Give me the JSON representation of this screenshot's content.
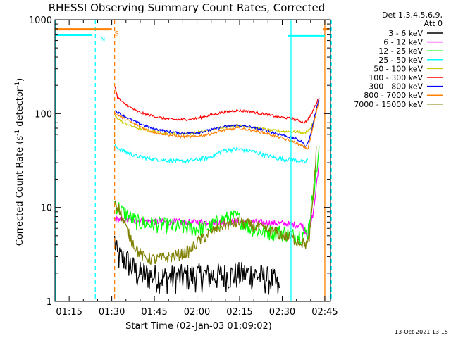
{
  "chart_data": {
    "type": "line",
    "title": "RHESSI Observing Summary Count Rates, Corrected",
    "xlabel": "Start Time (02-Jan-03 01:09:02)",
    "ylabel_main": "Corrected Count Rate (s",
    "ylabel_sup1": "-1",
    "ylabel_mid": " detector",
    "ylabel_sup2": "-1",
    "ylabel_end": ")",
    "y_scale": "log",
    "ylim": [
      1,
      1000
    ],
    "xlim_minutes": [
      1.0,
      98.0
    ],
    "x_ticks": [
      {
        "m": 6,
        "label": "01:15"
      },
      {
        "m": 21,
        "label": "01:30"
      },
      {
        "m": 36,
        "label": "01:45"
      },
      {
        "m": 51,
        "label": "02:00"
      },
      {
        "m": 66,
        "label": "02:15"
      },
      {
        "m": 81,
        "label": "02:30"
      },
      {
        "m": 96,
        "label": "02:45"
      }
    ],
    "y_ticks": [
      {
        "v": 1,
        "label": "1"
      },
      {
        "v": 10,
        "label": "10"
      },
      {
        "v": 100,
        "label": "100"
      },
      {
        "v": 1000,
        "label": "1000"
      }
    ],
    "legend": {
      "header1": "Det 1,3,4,5,6,9,",
      "header2": "Att 0",
      "position": "right",
      "entries": [
        {
          "label": "3 - 6 keV",
          "color": "#000000"
        },
        {
          "label": "6 - 12 keV",
          "color": "#ff00ff"
        },
        {
          "label": "12 - 25 keV",
          "color": "#00ff00"
        },
        {
          "label": "25 - 50 keV",
          "color": "#00ffff"
        },
        {
          "label": "50 - 100 keV",
          "color": "#cccc00"
        },
        {
          "label": "100 - 300 keV",
          "color": "#ff0000"
        },
        {
          "label": "300 - 800 keV",
          "color": "#0000ff"
        },
        {
          "label": "800 - 7000 keV",
          "color": "#ff8000"
        },
        {
          "label": "7000 - 15000 keV",
          "color": "#808000"
        }
      ]
    },
    "series": [
      {
        "name": "3 - 6 keV",
        "color": "#000000",
        "noise": 0.35,
        "points": [
          [
            22,
            4.5
          ],
          [
            23,
            3
          ],
          [
            26,
            2.8
          ],
          [
            30,
            2
          ],
          [
            40,
            1.8
          ],
          [
            50,
            1.9
          ],
          [
            60,
            1.9
          ],
          [
            70,
            2
          ],
          [
            75,
            1.8
          ],
          [
            78,
            1.7
          ],
          [
            80,
            1.3
          ]
        ]
      },
      {
        "name": "6 - 12 keV",
        "color": "#ff00ff",
        "noise": 0.08,
        "points": [
          [
            22,
            7.5
          ],
          [
            30,
            7.2
          ],
          [
            40,
            7
          ],
          [
            50,
            7
          ],
          [
            60,
            7
          ],
          [
            70,
            7
          ],
          [
            80,
            6.8
          ],
          [
            88,
            6.5
          ],
          [
            90,
            5
          ],
          [
            92,
            9
          ],
          [
            94,
            30
          ]
        ]
      },
      {
        "name": "12 - 25 keV",
        "color": "#00ff00",
        "noise": 0.2,
        "points": [
          [
            22,
            11
          ],
          [
            25,
            9
          ],
          [
            30,
            7
          ],
          [
            40,
            6.5
          ],
          [
            50,
            6
          ],
          [
            55,
            6.2
          ],
          [
            60,
            7.5
          ],
          [
            65,
            8
          ],
          [
            70,
            6
          ],
          [
            75,
            5.5
          ],
          [
            80,
            5.5
          ],
          [
            86,
            5
          ],
          [
            90,
            5.5
          ],
          [
            94,
            40
          ]
        ]
      },
      {
        "name": "25 - 50 keV",
        "color": "#00ffff",
        "noise": 0.05,
        "points": [
          [
            22,
            45
          ],
          [
            25,
            40
          ],
          [
            30,
            35
          ],
          [
            35,
            33
          ],
          [
            40,
            32
          ],
          [
            45,
            31
          ],
          [
            50,
            32
          ],
          [
            55,
            34
          ],
          [
            60,
            40
          ],
          [
            65,
            42
          ],
          [
            70,
            40
          ],
          [
            75,
            36
          ],
          [
            80,
            33
          ],
          [
            86,
            32
          ],
          [
            89,
            30
          ],
          [
            90,
            33
          ]
        ]
      },
      {
        "name": "50 - 100 keV",
        "color": "#cccc00",
        "noise": 0.03,
        "points": [
          [
            22,
            95
          ],
          [
            25,
            80
          ],
          [
            30,
            70
          ],
          [
            35,
            65
          ],
          [
            40,
            62
          ],
          [
            45,
            61
          ],
          [
            50,
            62
          ],
          [
            55,
            66
          ],
          [
            60,
            72
          ],
          [
            65,
            75
          ],
          [
            70,
            72
          ],
          [
            75,
            68
          ],
          [
            80,
            65
          ],
          [
            86,
            64
          ],
          [
            89,
            62
          ],
          [
            91,
            70
          ],
          [
            93,
            95
          ]
        ]
      },
      {
        "name": "100 - 300 keV",
        "color": "#ff0000",
        "noise": 0.03,
        "points": [
          [
            22,
            200
          ],
          [
            23,
            150
          ],
          [
            25,
            130
          ],
          [
            30,
            105
          ],
          [
            35,
            95
          ],
          [
            40,
            88
          ],
          [
            45,
            86
          ],
          [
            50,
            88
          ],
          [
            55,
            95
          ],
          [
            60,
            103
          ],
          [
            65,
            108
          ],
          [
            70,
            105
          ],
          [
            75,
            98
          ],
          [
            80,
            92
          ],
          [
            85,
            88
          ],
          [
            89,
            80
          ],
          [
            91,
            95
          ],
          [
            94,
            150
          ]
        ]
      },
      {
        "name": "300 - 800 keV",
        "color": "#0000ff",
        "noise": 0.03,
        "points": [
          [
            22,
            108
          ],
          [
            25,
            95
          ],
          [
            30,
            80
          ],
          [
            35,
            70
          ],
          [
            40,
            65
          ],
          [
            45,
            62
          ],
          [
            50,
            62
          ],
          [
            55,
            66
          ],
          [
            60,
            72
          ],
          [
            65,
            75
          ],
          [
            70,
            72
          ],
          [
            75,
            66
          ],
          [
            80,
            60
          ],
          [
            85,
            55
          ],
          [
            88,
            50
          ],
          [
            89,
            45
          ],
          [
            90,
            48
          ],
          [
            91,
            60
          ],
          [
            94,
            150
          ]
        ]
      },
      {
        "name": "800 - 7000 keV",
        "color": "#ff8000",
        "noise": 0.03,
        "points": [
          [
            22,
            100
          ],
          [
            25,
            90
          ],
          [
            30,
            75
          ],
          [
            35,
            64
          ],
          [
            40,
            60
          ],
          [
            45,
            57
          ],
          [
            50,
            57
          ],
          [
            55,
            60
          ],
          [
            60,
            66
          ],
          [
            65,
            70
          ],
          [
            70,
            67
          ],
          [
            75,
            62
          ],
          [
            80,
            56
          ],
          [
            85,
            50
          ],
          [
            88,
            45
          ],
          [
            90,
            42
          ],
          [
            91,
            55
          ],
          [
            94,
            140
          ]
        ]
      },
      {
        "name": "7000 - 15000 keV",
        "color": "#808000",
        "noise": 0.15,
        "points": [
          [
            22,
            12
          ],
          [
            24,
            9
          ],
          [
            26,
            6
          ],
          [
            28,
            4.5
          ],
          [
            30,
            3.5
          ],
          [
            32,
            3
          ],
          [
            36,
            2.8
          ],
          [
            42,
            3
          ],
          [
            48,
            3.4
          ],
          [
            52,
            4.5
          ],
          [
            56,
            5.5
          ],
          [
            60,
            6.5
          ],
          [
            66,
            7
          ],
          [
            70,
            6.5
          ],
          [
            74,
            6
          ],
          [
            78,
            5.5
          ],
          [
            82,
            5
          ],
          [
            86,
            4.5
          ],
          [
            90,
            4
          ],
          [
            91,
            6
          ],
          [
            92,
            15
          ],
          [
            93,
            40
          ]
        ]
      }
    ],
    "horizontal_bars": [
      {
        "color": "#ff8000",
        "x0": 1,
        "x1": 21,
        "y": 790,
        "label": "S",
        "label_color": "#ff8000",
        "label_x": 22
      },
      {
        "color": "#00ffff",
        "x0": 1,
        "x1": 14,
        "y": 690,
        "label": "N",
        "label_color": "#00ffff",
        "label_x": 17
      },
      {
        "color": "#00ffff",
        "x0": 83,
        "x1": 96,
        "y": 680,
        "label": "",
        "label_color": "#00ffff",
        "label_x": 0
      },
      {
        "color": "#ff8000",
        "x0": 95.5,
        "x1": 97.5,
        "y": 790,
        "label": "",
        "label_color": "#ff8000",
        "label_x": 0
      }
    ],
    "vertical_markers": [
      {
        "x": 0.2,
        "color": "#00ffff",
        "style": "solid"
      },
      {
        "x": 14.2,
        "color": "#00ffff",
        "style": "dashed"
      },
      {
        "x": 21.0,
        "color": "#ff8000",
        "style": "dashed"
      },
      {
        "x": 83.1,
        "color": "#00ffff",
        "style": "solid"
      },
      {
        "x": 95.0,
        "color": "#ff8000",
        "style": "solid"
      },
      {
        "x": 97.3,
        "color": "#00ffff",
        "style": "dashed"
      }
    ],
    "grid": false
  },
  "footer": {
    "timestamp": "13-Oct-2021 13:15"
  }
}
